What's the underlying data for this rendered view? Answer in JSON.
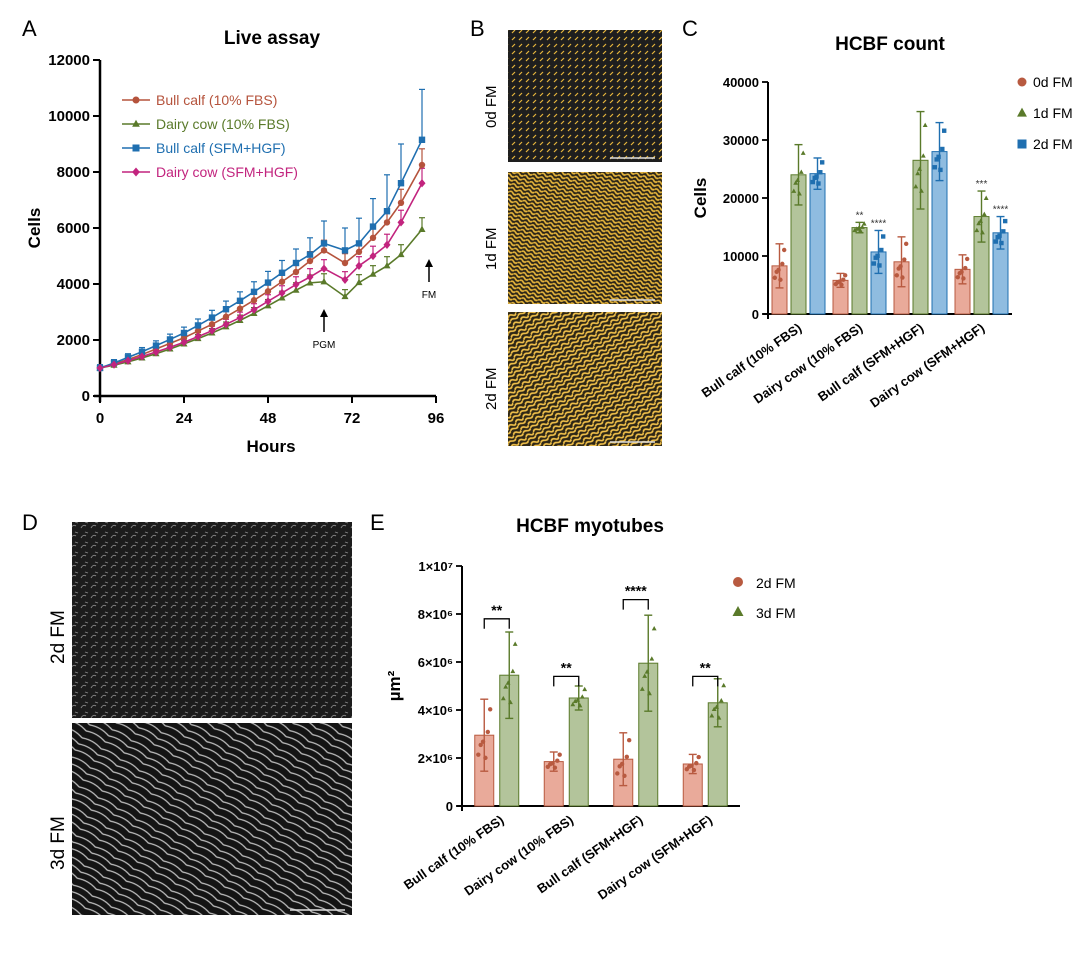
{
  "colors": {
    "bull_fbs": "#b5533c",
    "dairy_fbs": "#5a7a2a",
    "bull_sfm": "#1f6fb0",
    "dairy_sfm": "#c2247e",
    "d0_fill": "#e9aa9a",
    "d0_stroke": "#b85a40",
    "d1_fill": "#b3c49b",
    "d1_stroke": "#5a7a2a",
    "d2_fill": "#8fbce0",
    "d2_stroke": "#1f6fb0",
    "micro_yellow": "#e6b53c"
  },
  "panels": {
    "a": {
      "label": "A"
    },
    "b": {
      "label": "B",
      "rows": [
        "0d FM",
        "1d FM",
        "2d FM"
      ]
    },
    "c": {
      "label": "C"
    },
    "d": {
      "label": "D",
      "rows": [
        "2d FM",
        "3d FM"
      ]
    },
    "e": {
      "label": "E"
    }
  },
  "chart_data": [
    {
      "id": "live-assay",
      "type": "line",
      "title": "Live assay",
      "xlabel": "Hours",
      "ylabel": "Cells",
      "xlim": [
        0,
        96
      ],
      "ylim": [
        0,
        12000
      ],
      "xticks": [
        0,
        24,
        48,
        72,
        96
      ],
      "yticks": [
        0,
        2000,
        4000,
        6000,
        8000,
        10000,
        12000
      ],
      "legend_position": "top-left",
      "x": [
        0,
        4,
        8,
        12,
        16,
        20,
        24,
        28,
        32,
        36,
        40,
        44,
        48,
        52,
        56,
        60,
        64,
        70,
        74,
        78,
        82,
        86,
        92
      ],
      "series": [
        {
          "name": "Bull calf (10% FBS)",
          "color_key": "bull_fbs",
          "marker": "circle",
          "values": [
            1000,
            1150,
            1300,
            1480,
            1680,
            1880,
            2080,
            2320,
            2560,
            2830,
            3120,
            3420,
            3740,
            4080,
            4430,
            4820,
            5200,
            4750,
            5150,
            5650,
            6200,
            6900,
            8250
          ]
        },
        {
          "name": "Dairy cow (10% FBS)",
          "color_key": "dairy_fbs",
          "marker": "triangle",
          "values": [
            1000,
            1100,
            1220,
            1360,
            1510,
            1680,
            1860,
            2050,
            2250,
            2470,
            2700,
            2950,
            3220,
            3500,
            3780,
            4040,
            4080,
            3550,
            4050,
            4350,
            4650,
            5050,
            5950
          ]
        },
        {
          "name": "Bull calf (SFM+HGF)",
          "color_key": "bull_sfm",
          "marker": "square",
          "values": [
            1000,
            1180,
            1380,
            1580,
            1800,
            2020,
            2250,
            2520,
            2800,
            3100,
            3400,
            3720,
            4050,
            4400,
            4750,
            5050,
            5450,
            5200,
            5450,
            6050,
            6600,
            7600,
            9150
          ],
          "error_plus": [
            120,
            120,
            130,
            150,
            170,
            190,
            210,
            230,
            260,
            290,
            320,
            360,
            400,
            440,
            500,
            600,
            800,
            800,
            900,
            1000,
            1300,
            1400,
            1800
          ]
        },
        {
          "name": "Dairy cow (SFM+HGF)",
          "color_key": "dairy_sfm",
          "marker": "diamond",
          "values": [
            1000,
            1120,
            1260,
            1410,
            1570,
            1740,
            1920,
            2120,
            2330,
            2560,
            2800,
            3080,
            3380,
            3680,
            3980,
            4250,
            4550,
            4150,
            4650,
            5000,
            5400,
            6200,
            7600
          ]
        }
      ],
      "annotations": [
        {
          "text": "PGM",
          "x": 64,
          "arrow": "up"
        },
        {
          "text": "FM",
          "x": 94,
          "arrow": "up"
        }
      ]
    },
    {
      "id": "hcbf-count",
      "type": "bar",
      "title": "HCBF count",
      "ylabel": "Cells",
      "ylim": [
        0,
        40000
      ],
      "yticks": [
        0,
        10000,
        20000,
        30000,
        40000
      ],
      "legend_position": "right",
      "categories": [
        "Bull calf (10% FBS)",
        "Dairy cow (10% FBS)",
        "Bull calf (SFM+HGF)",
        "Dairy cow (SFM+HGF)"
      ],
      "series": [
        {
          "name": "0d FM",
          "marker": "circle",
          "fill_key": "d0_fill",
          "stroke_key": "d0_stroke",
          "values": [
            8300,
            5800,
            9000,
            7700
          ],
          "error": [
            3800,
            1200,
            4300,
            2500
          ]
        },
        {
          "name": "1d FM",
          "marker": "triangle",
          "fill_key": "d1_fill",
          "stroke_key": "d1_stroke",
          "values": [
            24000,
            14900,
            26500,
            16800
          ],
          "error": [
            5200,
            900,
            8400,
            4400
          ]
        },
        {
          "name": "2d FM",
          "marker": "square",
          "fill_key": "d2_fill",
          "stroke_key": "d2_stroke",
          "values": [
            24200,
            10700,
            28000,
            14000
          ],
          "error": [
            2700,
            3700,
            5000,
            2800
          ]
        }
      ],
      "significance": [
        {
          "category": 1,
          "series": 1,
          "text": "**"
        },
        {
          "category": 1,
          "series": 2,
          "text": "****"
        },
        {
          "category": 3,
          "series": 1,
          "text": "***"
        },
        {
          "category": 3,
          "series": 2,
          "text": "****"
        }
      ]
    },
    {
      "id": "hcbf-myotubes",
      "type": "bar",
      "title": "HCBF myotubes",
      "ylabel": "µm²",
      "ylim": [
        0,
        10000000
      ],
      "yticks": [
        {
          "value": 0,
          "label": "0"
        },
        {
          "value": 2000000,
          "label": "2×10⁶"
        },
        {
          "value": 4000000,
          "label": "4×10⁶"
        },
        {
          "value": 6000000,
          "label": "6×10⁶"
        },
        {
          "value": 8000000,
          "label": "8×10⁶"
        },
        {
          "value": 10000000,
          "label": "1×10⁷"
        }
      ],
      "legend_position": "right",
      "categories": [
        "Bull calf (10% FBS)",
        "Dairy cow (10% FBS)",
        "Bull calf (SFM+HGF)",
        "Dairy cow (SFM+HGF)"
      ],
      "series": [
        {
          "name": "2d FM",
          "marker": "circle",
          "fill_key": "d0_fill",
          "stroke_key": "d0_stroke",
          "values": [
            2950000,
            1850000,
            1950000,
            1750000
          ],
          "error": [
            1500000,
            400000,
            1100000,
            400000
          ]
        },
        {
          "name": "3d FM",
          "marker": "triangle",
          "fill_key": "d1_fill",
          "stroke_key": "d1_stroke",
          "values": [
            5450000,
            4500000,
            5950000,
            4300000
          ],
          "error": [
            1800000,
            500000,
            2000000,
            1000000
          ]
        }
      ],
      "significance": [
        {
          "category": 0,
          "text": "**",
          "y": 7800000
        },
        {
          "category": 1,
          "text": "**",
          "y": 5400000
        },
        {
          "category": 2,
          "text": "****",
          "y": 8600000
        },
        {
          "category": 3,
          "text": "**",
          "y": 5400000
        }
      ]
    }
  ]
}
